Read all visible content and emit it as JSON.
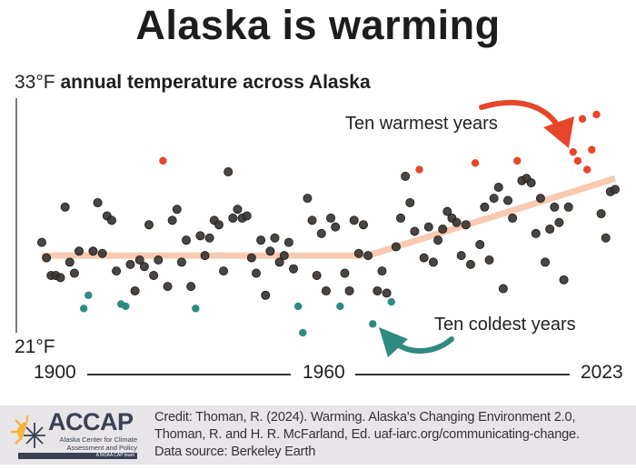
{
  "title": "Alaska is warming",
  "chart_data": {
    "type": "scatter",
    "title": "Alaska is warming",
    "ylabel": "annual temperature across Alaska",
    "y_unit": "°F",
    "ylim": [
      21,
      33
    ],
    "y_tick_labels": [
      "33°F",
      "21°F"
    ],
    "xlim": [
      1900,
      2023
    ],
    "x_tick_labels": [
      "1900",
      "1960",
      "2023"
    ],
    "grid": false,
    "colors": {
      "normal": "#3a3532",
      "warmest": "#e8462a",
      "coldest": "#2f8a80",
      "trend": "#f6c4a8"
    },
    "x": [
      1900,
      1901,
      1902,
      1903,
      1904,
      1905,
      1906,
      1907,
      1908,
      1909,
      1910,
      1911,
      1912,
      1913,
      1914,
      1915,
      1916,
      1917,
      1918,
      1919,
      1920,
      1921,
      1922,
      1923,
      1924,
      1925,
      1926,
      1927,
      1928,
      1929,
      1930,
      1931,
      1932,
      1933,
      1934,
      1935,
      1936,
      1937,
      1938,
      1939,
      1940,
      1941,
      1942,
      1943,
      1944,
      1945,
      1946,
      1947,
      1948,
      1949,
      1950,
      1951,
      1952,
      1953,
      1954,
      1955,
      1956,
      1957,
      1958,
      1959,
      1960,
      1961,
      1962,
      1963,
      1964,
      1965,
      1966,
      1967,
      1968,
      1969,
      1970,
      1971,
      1972,
      1973,
      1974,
      1975,
      1976,
      1977,
      1978,
      1979,
      1980,
      1981,
      1982,
      1983,
      1984,
      1985,
      1986,
      1987,
      1988,
      1989,
      1990,
      1991,
      1992,
      1993,
      1994,
      1995,
      1996,
      1997,
      1998,
      1999,
      2000,
      2001,
      2002,
      2003,
      2004,
      2005,
      2006,
      2007,
      2008,
      2009,
      2010,
      2011,
      2012,
      2013,
      2014,
      2015,
      2016,
      2017,
      2018,
      2019,
      2020,
      2021,
      2022,
      2023
    ],
    "y": [
      25.8,
      25.1,
      24.3,
      24.3,
      24.2,
      27.4,
      24.9,
      24.4,
      25.4,
      22.8,
      23.4,
      25.4,
      27.6,
      25.3,
      27.0,
      26.8,
      24.5,
      23.0,
      22.9,
      24.8,
      23.6,
      25.0,
      24.7,
      26.6,
      24.3,
      25.0,
      29.5,
      23.8,
      26.8,
      27.3,
      24.9,
      25.9,
      23.8,
      22.8,
      26.1,
      25.2,
      26.0,
      26.8,
      26.6,
      24.5,
      29.0,
      26.9,
      27.3,
      26.9,
      27.0,
      25.1,
      24.4,
      25.9,
      23.4,
      25.4,
      26.0,
      24.9,
      25.2,
      25.8,
      24.6,
      22.9,
      21.7,
      27.8,
      26.8,
      24.3,
      26.2,
      23.6,
      26.9,
      26.5,
      22.9,
      24.4,
      23.6,
      26.8,
      25.3,
      26.6,
      25.2,
      22.1,
      23.6,
      24.5,
      23.5,
      23.1,
      25.6,
      26.9,
      28.8,
      27.6,
      26.3,
      29.1,
      25.1,
      26.5,
      24.9,
      25.9,
      26.4,
      27.2,
      26.9,
      26.7,
      25.2,
      26.6,
      24.8,
      29.4,
      25.7,
      27.4,
      25.0,
      27.8,
      28.3,
      23.7,
      27.7,
      26.9,
      29.5,
      28.6,
      28.7,
      28.5,
      26.2,
      27.8,
      24.9,
      26.4,
      27.4,
      26.7,
      24.1,
      27.4,
      29.9,
      29.5,
      31.4,
      29.1,
      30.0,
      31.6,
      27.1,
      26.0,
      28.1,
      28.2
    ],
    "warmest_years": [
      1926,
      1981,
      1993,
      2002,
      2014,
      2015,
      2016,
      2017,
      2018,
      2019
    ],
    "coldest_years": [
      1909,
      1910,
      1917,
      1918,
      1933,
      1955,
      1956,
      1964,
      1971,
      1975
    ],
    "trend": {
      "x": [
        1900,
        1970,
        2023
      ],
      "y": [
        25.2,
        25.2,
        28.7
      ]
    },
    "annotations": {
      "warmest": "Ten warmest years",
      "coldest": "Ten coldest years"
    }
  },
  "footer": {
    "logo": {
      "name": "ACCAP",
      "line1": "Alaska Center for Climate",
      "line2": "Assessment and Policy",
      "tag": "A NOAA CAP team"
    },
    "credit_lines": [
      "Credit: Thoman, R. (2024). Warming. Alaska's Changing Environment 2.0,",
      "Thoman, R. and H. R. McFarland, Ed. uaf-iarc.org/communicating-change.",
      "Data source: Berkeley Earth"
    ]
  }
}
